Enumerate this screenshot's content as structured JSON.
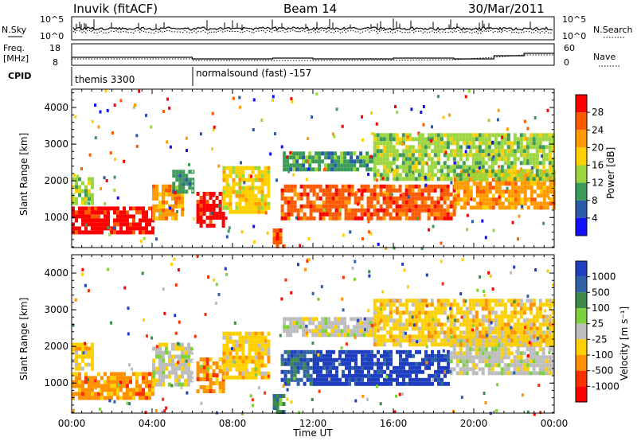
{
  "header": {
    "station": "Inuvik (fitACF)",
    "beam": "Beam 14",
    "date": "30/Mar/2011"
  },
  "top_panels": {
    "nsky_label": "N.Sky",
    "nsearch_label": "N.Search",
    "noise_left_ticks": [
      "10^5",
      "10^0"
    ],
    "noise_right_ticks": [
      "10^5",
      "10^0"
    ],
    "freq_label": "Freq.",
    "freq_unit": "[MHz]",
    "freq_ticks": [
      "18",
      "8"
    ],
    "nave_label": "Nave",
    "nave_ticks": [
      "60",
      "0"
    ],
    "cpid_label": "CPID",
    "cpid_modes": [
      {
        "name": "themis 3300",
        "start_hour": 0
      },
      {
        "name": "normalsound (fast) -157",
        "start_hour": 6.0
      }
    ]
  },
  "chart_data": [
    {
      "type": "heatmap",
      "name": "power-panel",
      "xlabel": "Time UT",
      "ylabel": "Slant Range [km]",
      "xlim": [
        0,
        24
      ],
      "ylim": [
        180,
        4500
      ],
      "y_ticks": [
        1000,
        2000,
        3000,
        4000
      ],
      "x_tick_labels": [
        "00:00",
        "04:00",
        "08:00",
        "12:00",
        "16:00",
        "20:00",
        "00:00"
      ],
      "colorbar": {
        "label": "Power [dB]",
        "ticks": [
          "28",
          "24",
          "20",
          "16",
          "12",
          "8",
          "4"
        ],
        "colors": [
          "#ff0000",
          "#ff5a00",
          "#ff9a00",
          "#ffd000",
          "#9ad63c",
          "#3c9a5a",
          "#2a5aa8",
          "#1010ff"
        ]
      },
      "echo_regions": [
        {
          "t0": 0.0,
          "t1": 4.0,
          "r0": 600,
          "r1": 1300,
          "level": 28
        },
        {
          "t0": 0.0,
          "t1": 1.0,
          "r0": 1400,
          "r1": 2100,
          "level": 12
        },
        {
          "t0": 4.0,
          "t1": 5.5,
          "r0": 1000,
          "r1": 1900,
          "level": 20
        },
        {
          "t0": 5.0,
          "t1": 6.0,
          "r0": 1700,
          "r1": 2300,
          "level": 8
        },
        {
          "t0": 6.2,
          "t1": 7.5,
          "r0": 800,
          "r1": 1700,
          "level": 28
        },
        {
          "t0": 7.5,
          "t1": 9.8,
          "r0": 1100,
          "r1": 2400,
          "level": 16
        },
        {
          "t0": 10.0,
          "t1": 10.5,
          "r0": 250,
          "r1": 700,
          "level": 24
        },
        {
          "t0": 10.4,
          "t1": 19.0,
          "r0": 1000,
          "r1": 1900,
          "level": 24
        },
        {
          "t0": 19.0,
          "t1": 24.0,
          "r0": 1300,
          "r1": 2300,
          "level": 20
        },
        {
          "t0": 10.5,
          "t1": 15.0,
          "r0": 2300,
          "r1": 2800,
          "level": 8
        },
        {
          "t0": 15.0,
          "t1": 24.0,
          "r0": 2000,
          "r1": 3300,
          "level": 12
        }
      ]
    },
    {
      "type": "heatmap",
      "name": "velocity-panel",
      "xlabel": "Time UT",
      "ylabel": "Slant Range [km]",
      "xlim": [
        0,
        24
      ],
      "ylim": [
        180,
        4500
      ],
      "y_ticks": [
        1000,
        2000,
        3000,
        4000
      ],
      "x_tick_labels": [
        "00:00",
        "04:00",
        "08:00",
        "12:00",
        "16:00",
        "20:00",
        "00:00"
      ],
      "colorbar": {
        "label": "Velocity [m s⁻¹]",
        "ticks": [
          "1000",
          "500",
          "100",
          "25",
          "-25",
          "-100",
          "-500",
          "-1000"
        ],
        "colors": [
          "#1f3fc0",
          "#2f62a8",
          "#3c8a4a",
          "#7ed03c",
          "#bdbdbd",
          "#ffd000",
          "#ff9000",
          "#ff3000",
          "#ff0000"
        ]
      },
      "echo_regions": [
        {
          "t0": 0.0,
          "t1": 4.0,
          "r0": 600,
          "r1": 1300,
          "level": -500
        },
        {
          "t0": 0.0,
          "t1": 1.0,
          "r0": 1400,
          "r1": 2100,
          "level": -100
        },
        {
          "t0": 4.0,
          "t1": 6.0,
          "r0": 1000,
          "r1": 2100,
          "level": -25
        },
        {
          "t0": 6.2,
          "t1": 7.5,
          "r0": 800,
          "r1": 1700,
          "level": -500
        },
        {
          "t0": 7.5,
          "t1": 9.8,
          "r0": 1100,
          "r1": 2400,
          "level": -100
        },
        {
          "t0": 10.0,
          "t1": 10.5,
          "r0": 250,
          "r1": 700,
          "level": 100
        },
        {
          "t0": 10.4,
          "t1": 12.0,
          "r0": 1000,
          "r1": 1900,
          "level": 500
        },
        {
          "t0": 12.0,
          "t1": 18.8,
          "r0": 1000,
          "r1": 1900,
          "level": 1000
        },
        {
          "t0": 18.8,
          "t1": 24.0,
          "r0": 1300,
          "r1": 2300,
          "level": -25
        },
        {
          "t0": 10.5,
          "t1": 15.0,
          "r0": 2300,
          "r1": 2800,
          "level": -25
        },
        {
          "t0": 15.0,
          "t1": 24.0,
          "r0": 2000,
          "r1": 3300,
          "level": -100
        }
      ]
    }
  ]
}
